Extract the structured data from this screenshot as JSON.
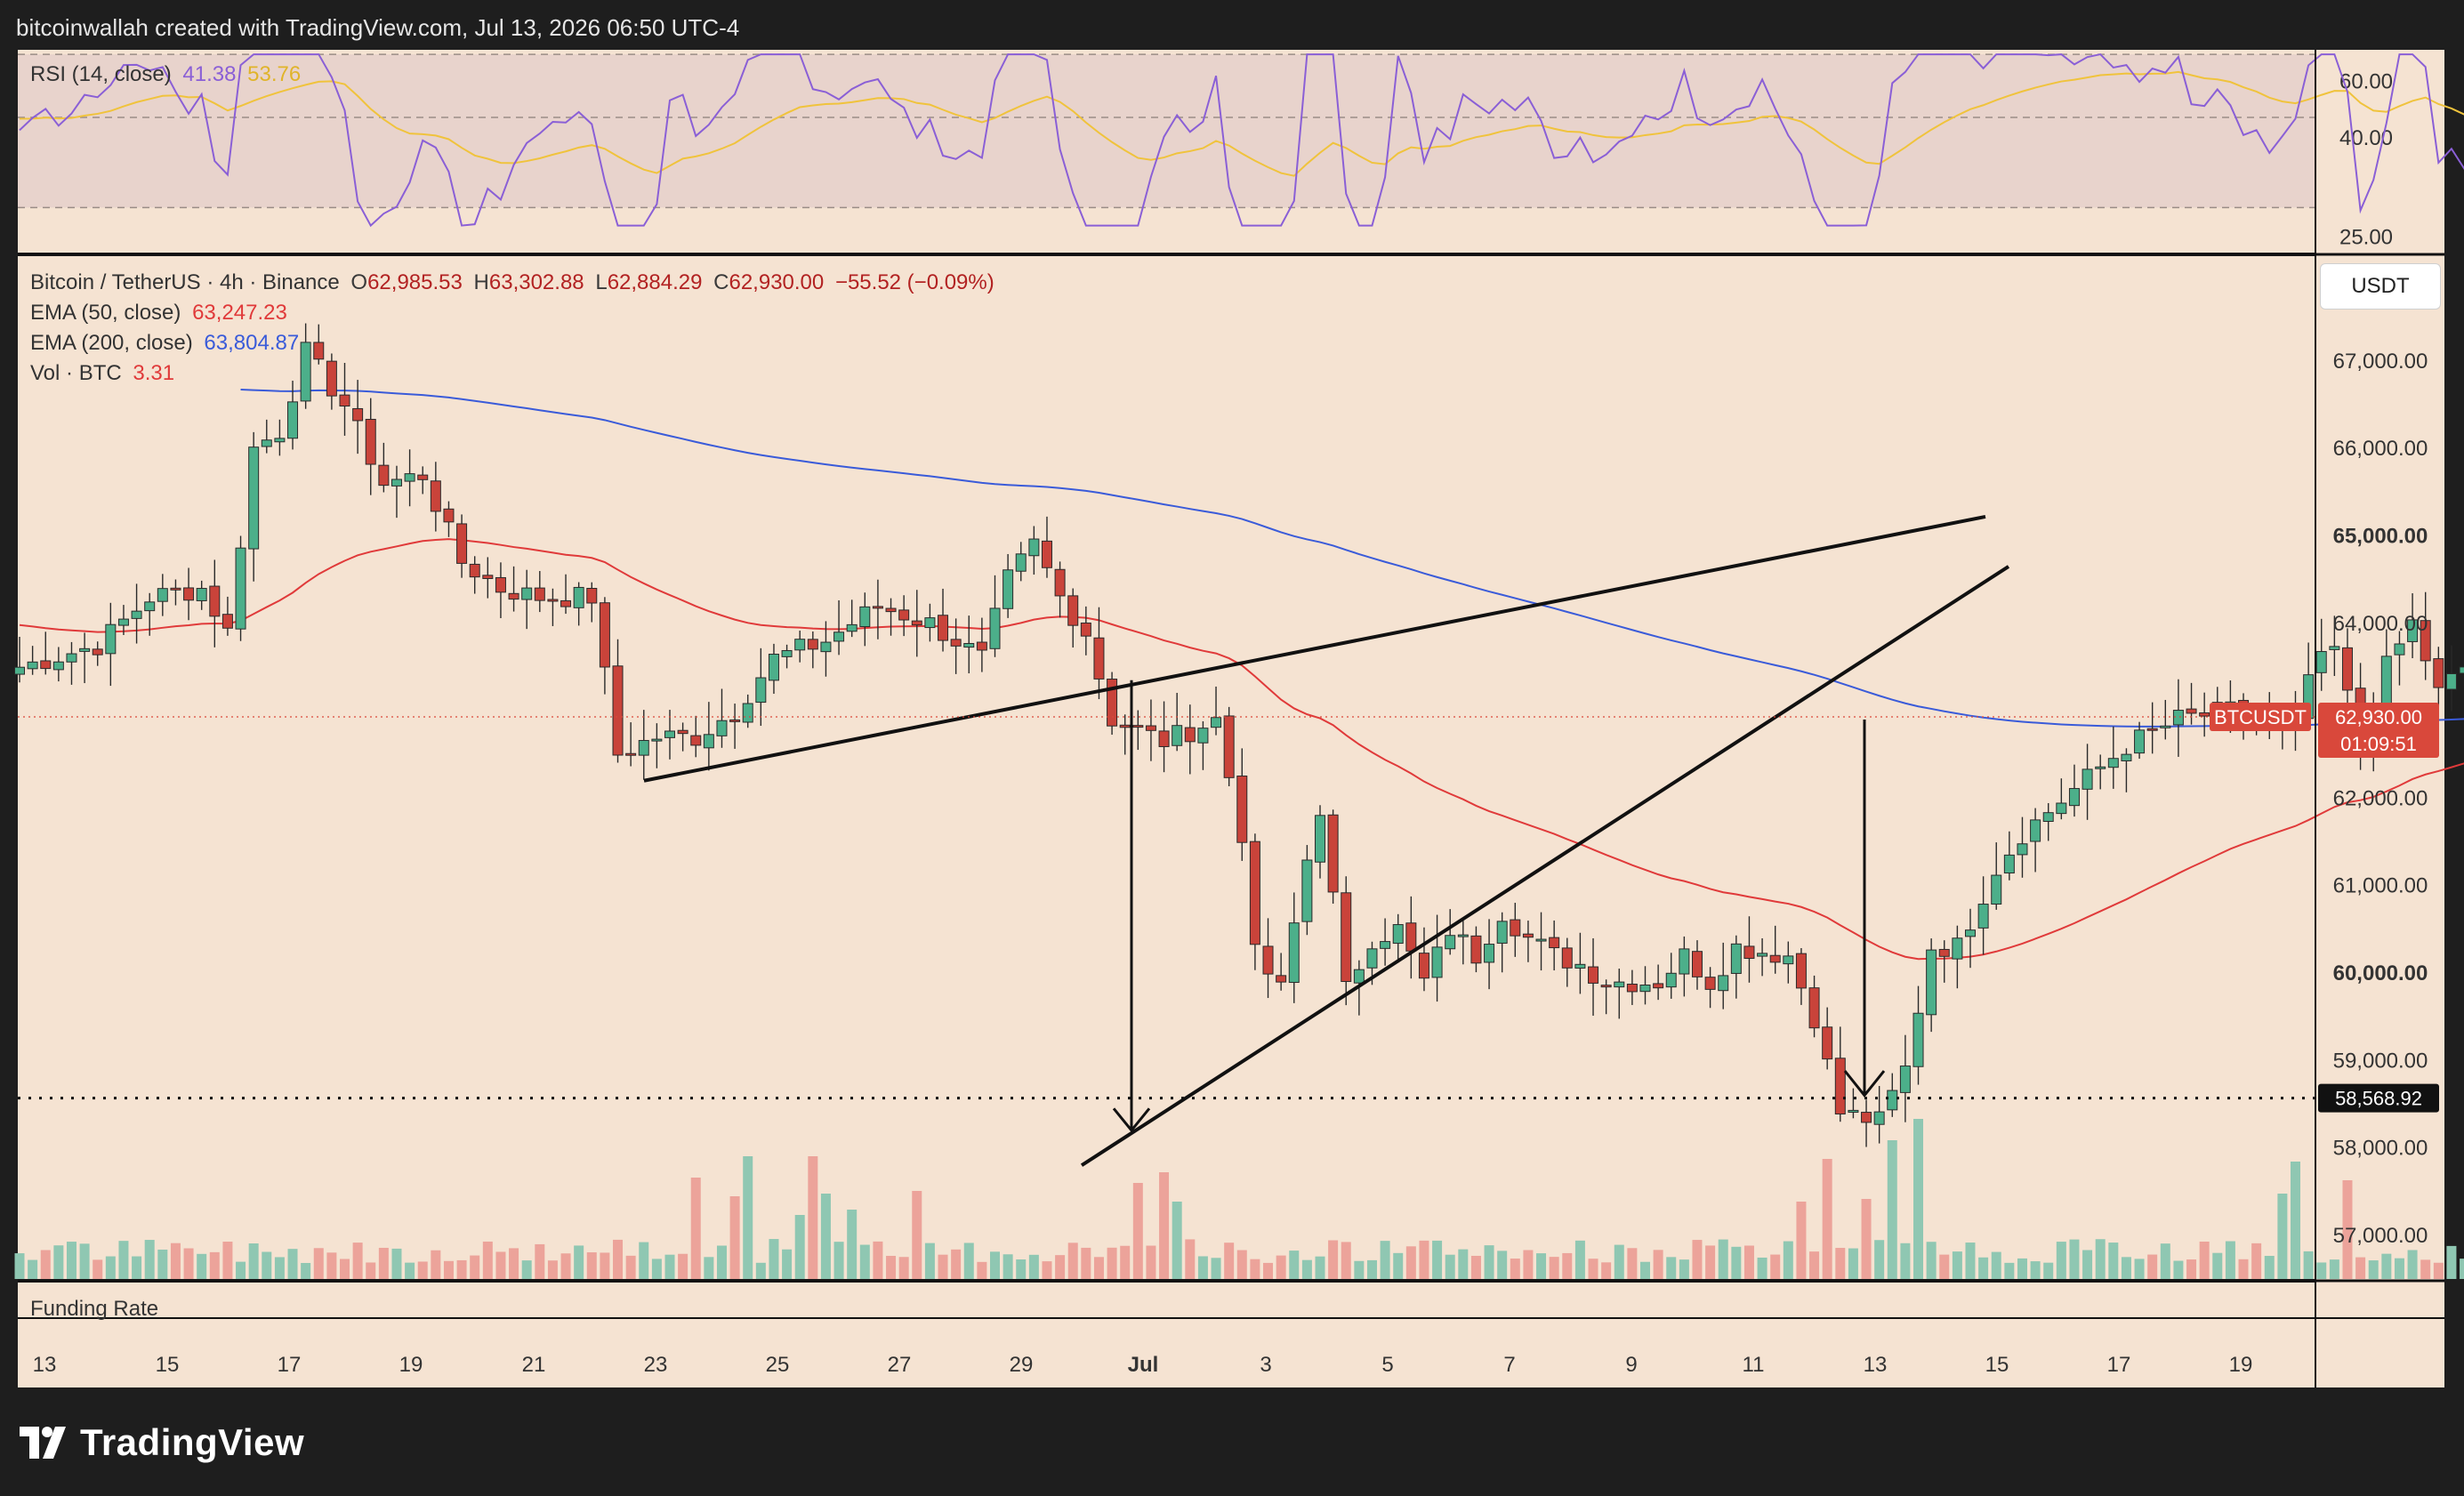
{
  "header": {
    "text": "bitcoinwallah created with TradingView.com, Jul 13, 2026 06:50 UTC-4"
  },
  "colors": {
    "background": "#f5e3d2",
    "frame": "#1e1e1e",
    "up": "#4caf8a",
    "down": "#c9433a",
    "ema50": "#e03a3a",
    "ema200": "#3a5bd9",
    "rsi": "#8a5fd6",
    "rsi_ma": "#f0c33c",
    "vol_up": "#8fc7b2",
    "vol_down": "#eca39a",
    "badge": "#d9483b"
  },
  "rsi_panel": {
    "label": "RSI (14, close)",
    "value1": "41.38",
    "value2": "53.76",
    "ticks": [
      "60.00",
      "40.00",
      "25.00"
    ]
  },
  "main_legend": {
    "symbol": "Bitcoin / TetherUS · 4h · Binance",
    "o_label": "O",
    "o": "62,985.53",
    "h_label": "H",
    "h": "63,302.88",
    "l_label": "L",
    "l": "62,884.29",
    "c_label": "C",
    "c": "62,930.00",
    "change": "−55.52 (−0.09%)",
    "ema50_label": "EMA (50, close)",
    "ema50_value": "63,247.23",
    "ema200_label": "EMA (200, close)",
    "ema200_value": "63,804.87",
    "vol_label": "Vol · BTC",
    "vol_value": "3.31"
  },
  "price_axis": {
    "currency_button": "USDT",
    "ticks": [
      "67,000.00",
      "66,000.00",
      "65,000.00",
      "64,000.00",
      "62,000.00",
      "61,000.00",
      "60,000.00",
      "59,000.00",
      "58,000.00",
      "57,000.00"
    ],
    "bold_ticks": [
      "65,000.00",
      "60,000.00"
    ],
    "price_badge_label": "BTCUSDT",
    "price_badge_value": "62,930.00",
    "countdown": "01:09:51",
    "target_value": "58,568.92"
  },
  "funding_panel": {
    "label": "Funding Rate"
  },
  "time_axis": {
    "labels": [
      "13",
      "15",
      "17",
      "19",
      "21",
      "23",
      "25",
      "27",
      "29",
      "Jul",
      "3",
      "5",
      "7",
      "9",
      "11",
      "13",
      "15",
      "17",
      "19"
    ]
  },
  "brand": {
    "name": "TradingView"
  },
  "chart_data": {
    "type": "candlestick",
    "symbol": "BTCUSDT",
    "interval": "4h",
    "ylim": [
      56500,
      68200
    ],
    "x_labels": [
      "13",
      "15",
      "17",
      "19",
      "21",
      "23",
      "25",
      "27",
      "29",
      "Jul",
      "3",
      "5",
      "7",
      "9",
      "11",
      "13",
      "15",
      "17",
      "19"
    ],
    "anchors": [
      [
        0,
        63500
      ],
      [
        6,
        63750
      ],
      [
        10,
        64300
      ],
      [
        14,
        64400
      ],
      [
        16,
        63900
      ],
      [
        18,
        66000
      ],
      [
        20,
        66200
      ],
      [
        22,
        67100
      ],
      [
        25,
        66500
      ],
      [
        28,
        65600
      ],
      [
        31,
        65700
      ],
      [
        34,
        64700
      ],
      [
        37,
        64400
      ],
      [
        40,
        64300
      ],
      [
        44,
        64300
      ],
      [
        46,
        62500
      ],
      [
        49,
        62700
      ],
      [
        52,
        62700
      ],
      [
        55,
        63000
      ],
      [
        58,
        63600
      ],
      [
        62,
        63800
      ],
      [
        66,
        64200
      ],
      [
        70,
        64000
      ],
      [
        74,
        63600
      ],
      [
        76,
        64500
      ],
      [
        78,
        64900
      ],
      [
        80,
        64300
      ],
      [
        82,
        63900
      ],
      [
        84,
        62900
      ],
      [
        88,
        62650
      ],
      [
        92,
        62900
      ],
      [
        94,
        61600
      ],
      [
        95,
        60200
      ],
      [
        97,
        59800
      ],
      [
        99,
        61300
      ],
      [
        100,
        61900
      ],
      [
        102,
        59800
      ],
      [
        104,
        60400
      ],
      [
        106,
        60500
      ],
      [
        108,
        59900
      ],
      [
        110,
        60500
      ],
      [
        112,
        60200
      ],
      [
        114,
        60700
      ],
      [
        116,
        60400
      ],
      [
        118,
        60200
      ],
      [
        120,
        60100
      ],
      [
        122,
        59900
      ],
      [
        126,
        59900
      ],
      [
        128,
        60200
      ],
      [
        130,
        59900
      ],
      [
        132,
        60300
      ],
      [
        136,
        60200
      ],
      [
        138,
        59500
      ],
      [
        140,
        58400
      ],
      [
        143,
        58300
      ],
      [
        145,
        58900
      ],
      [
        147,
        60300
      ],
      [
        149,
        60300
      ],
      [
        152,
        61200
      ],
      [
        154,
        61600
      ],
      [
        158,
        62100
      ],
      [
        162,
        62600
      ],
      [
        166,
        62900
      ],
      [
        170,
        63000
      ],
      [
        172,
        62800
      ],
      [
        175,
        62800
      ],
      [
        176,
        63400
      ],
      [
        178,
        63700
      ],
      [
        180,
        62600
      ],
      [
        182,
        63500
      ],
      [
        184,
        64000
      ],
      [
        186,
        63200
      ],
      [
        188,
        63500
      ],
      [
        190,
        63600
      ],
      [
        192,
        62600
      ],
      [
        194,
        62600
      ],
      [
        196,
        62000
      ],
      [
        198,
        62000
      ],
      [
        201,
        62300
      ],
      [
        203,
        62700
      ],
      [
        206,
        63000
      ],
      [
        208,
        63800
      ],
      [
        210,
        64300
      ],
      [
        212,
        64000
      ],
      [
        214,
        64200
      ],
      [
        218,
        64000
      ],
      [
        221,
        64200
      ],
      [
        223,
        64000
      ],
      [
        226,
        64100
      ],
      [
        228,
        63900
      ],
      [
        229,
        63900
      ],
      [
        231,
        62950
      ],
      [
        233,
        62930
      ]
    ],
    "volume_spikes": {
      "52": 3.8,
      "56": 4.6,
      "55": 3.1,
      "62": 3.2,
      "60": 2.4,
      "61": 4.6,
      "64": 2.6,
      "69": 3.3,
      "86": 3.6,
      "88": 4.0,
      "89": 2.9,
      "137": 2.9,
      "139": 4.5,
      "142": 3.0,
      "144": 5.2,
      "146": 6.0,
      "174": 3.2,
      "175": 4.4,
      "179": 3.7,
      "196": 2.8,
      "199": 4.0,
      "210": 3.0,
      "216": 2.6,
      "230": 2.3,
      "231": 2.7
    },
    "lines": {
      "target": 58568.92,
      "last_price": 62930.0,
      "ema50_last": 63247.23,
      "ema200_last": 63804.87
    },
    "rsi_ylim": [
      20,
      65
    ],
    "rsi_bands": [
      30,
      50,
      64
    ]
  }
}
